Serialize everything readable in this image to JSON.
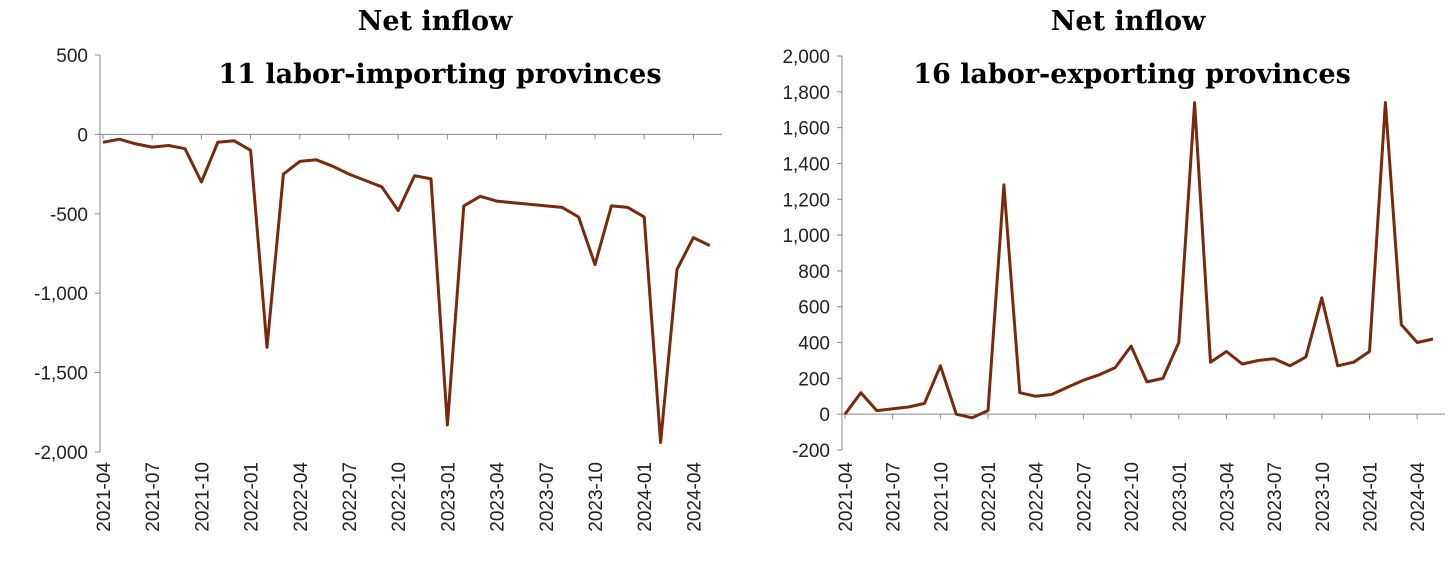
{
  "chart_data": [
    {
      "type": "line",
      "title": "Net inflow",
      "subtitle": "11 labor-importing provinces",
      "categories": [
        "2021-04",
        null,
        null,
        "2021-07",
        null,
        null,
        "2021-10",
        null,
        null,
        "2022-01",
        null,
        null,
        "2022-04",
        null,
        null,
        "2022-07",
        null,
        null,
        "2022-10",
        null,
        null,
        "2023-01",
        null,
        null,
        "2023-04",
        null,
        null,
        "2023-07",
        null,
        null,
        "2023-10",
        null,
        null,
        "2024-01",
        null,
        null,
        "2024-04",
        null
      ],
      "series": [
        {
          "name": "Net inflow",
          "color": "#7a2a0c",
          "values": [
            -50,
            -30,
            -60,
            -80,
            -70,
            -90,
            -300,
            -50,
            -40,
            -100,
            -1340,
            -250,
            -170,
            -160,
            -200,
            -250,
            -290,
            -330,
            -480,
            -260,
            -280,
            -1830,
            -450,
            -390,
            -420,
            -430,
            -440,
            -450,
            -460,
            -520,
            -820,
            -450,
            -460,
            -520,
            -1940,
            -850,
            -650,
            -700
          ]
        }
      ],
      "ylim": [
        -2000,
        500
      ],
      "yticks": [
        500,
        0,
        -500,
        {
          "value": -1000,
          "label": "-1,000"
        },
        {
          "value": -1500,
          "label": "-1,500"
        },
        {
          "value": -2000,
          "label": "-2,000"
        }
      ],
      "negative_tick_color": "#d6002f"
    },
    {
      "type": "line",
      "title": "Net inflow",
      "subtitle": "16 labor-exporting provinces",
      "categories": [
        "2021-04",
        null,
        null,
        "2021-07",
        null,
        null,
        "2021-10",
        null,
        null,
        "2022-01",
        null,
        null,
        "2022-04",
        null,
        null,
        "2022-07",
        null,
        null,
        "2022-10",
        null,
        null,
        "2023-01",
        null,
        null,
        "2023-04",
        null,
        null,
        "2023-07",
        null,
        null,
        "2023-10",
        null,
        null,
        "2024-01",
        null,
        null,
        "2024-04",
        null
      ],
      "series": [
        {
          "name": "Net inflow",
          "color": "#7a2a0c",
          "values": [
            0,
            120,
            20,
            30,
            40,
            60,
            270,
            0,
            -20,
            20,
            1280,
            120,
            100,
            110,
            150,
            190,
            220,
            260,
            380,
            180,
            200,
            400,
            1740,
            290,
            350,
            280,
            300,
            310,
            270,
            320,
            650,
            270,
            290,
            350,
            1740,
            500,
            400,
            420
          ]
        }
      ],
      "ylim": [
        -200,
        2000
      ],
      "yticks": [
        {
          "value": 2000,
          "label": "2,000"
        },
        {
          "value": 1800,
          "label": "1,800"
        },
        {
          "value": 1600,
          "label": "1,600"
        },
        {
          "value": 1400,
          "label": "1,400"
        },
        {
          "value": 1200,
          "label": "1,200"
        },
        {
          "value": 1000,
          "label": "1,000"
        },
        800,
        600,
        400,
        200,
        0,
        -200
      ]
    }
  ]
}
